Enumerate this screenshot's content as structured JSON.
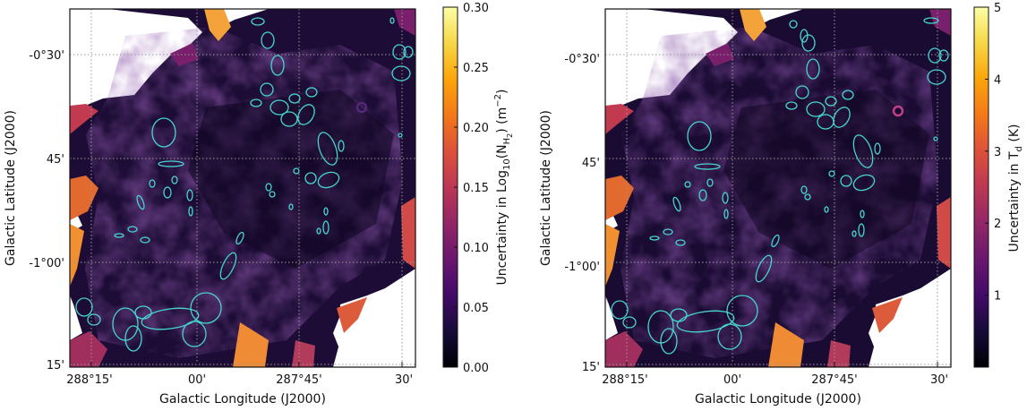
{
  "chart_data": [
    {
      "type": "heatmap",
      "panel": "left",
      "title": "",
      "xlabel": "Galactic Longitude (J2000)",
      "ylabel": "Galactic Latitude (J2000)",
      "x_tick_labels": [
        "288°15'",
        "00'",
        "287°45'",
        "30'"
      ],
      "y_tick_labels": [
        "-0°30'",
        "45'",
        "-1°00'",
        "15'"
      ],
      "colorbar": {
        "label": "Uncertainty in Log10(NH2) (m⁻²)",
        "label_parts": {
          "pre": "Uncertainty in Log",
          "sub1": "10",
          "mid": "(N",
          "sub2": "H",
          "sub3": "2",
          "post": ") (m",
          "sup": "−2",
          "end": ")"
        },
        "range": [
          0.0,
          0.3
        ],
        "ticks": [
          0.0,
          0.05,
          0.1,
          0.15,
          0.2,
          0.25,
          0.3
        ],
        "tick_labels": [
          "0.00",
          "0.05",
          "0.10",
          "0.15",
          "0.20",
          "0.25",
          "0.30"
        ],
        "colormap": "inferno"
      },
      "grid": true,
      "overlay": "clump ellipses (cyan)",
      "overlay_color": "#46d6d0"
    },
    {
      "type": "heatmap",
      "panel": "right",
      "title": "",
      "xlabel": "Galactic Longitude (J2000)",
      "ylabel": "Galactic Latitude (J2000)",
      "x_tick_labels": [
        "288°15'",
        "00'",
        "287°45'",
        "30'"
      ],
      "y_tick_labels": [
        "-0°30'",
        "45'",
        "-1°00'",
        "15'"
      ],
      "colorbar": {
        "label": "Uncertainty in Td (K)",
        "label_parts": {
          "pre": "Uncertainty in T",
          "sub": "d",
          "post": " (K)"
        },
        "range": [
          0,
          5
        ],
        "ticks": [
          1,
          2,
          3,
          4,
          5
        ],
        "tick_labels": [
          "1",
          "2",
          "3",
          "4",
          "5"
        ],
        "colormap": "inferno"
      },
      "grid": true,
      "overlay": "clump ellipses (cyan)",
      "overlay_color": "#46d6d0"
    }
  ]
}
